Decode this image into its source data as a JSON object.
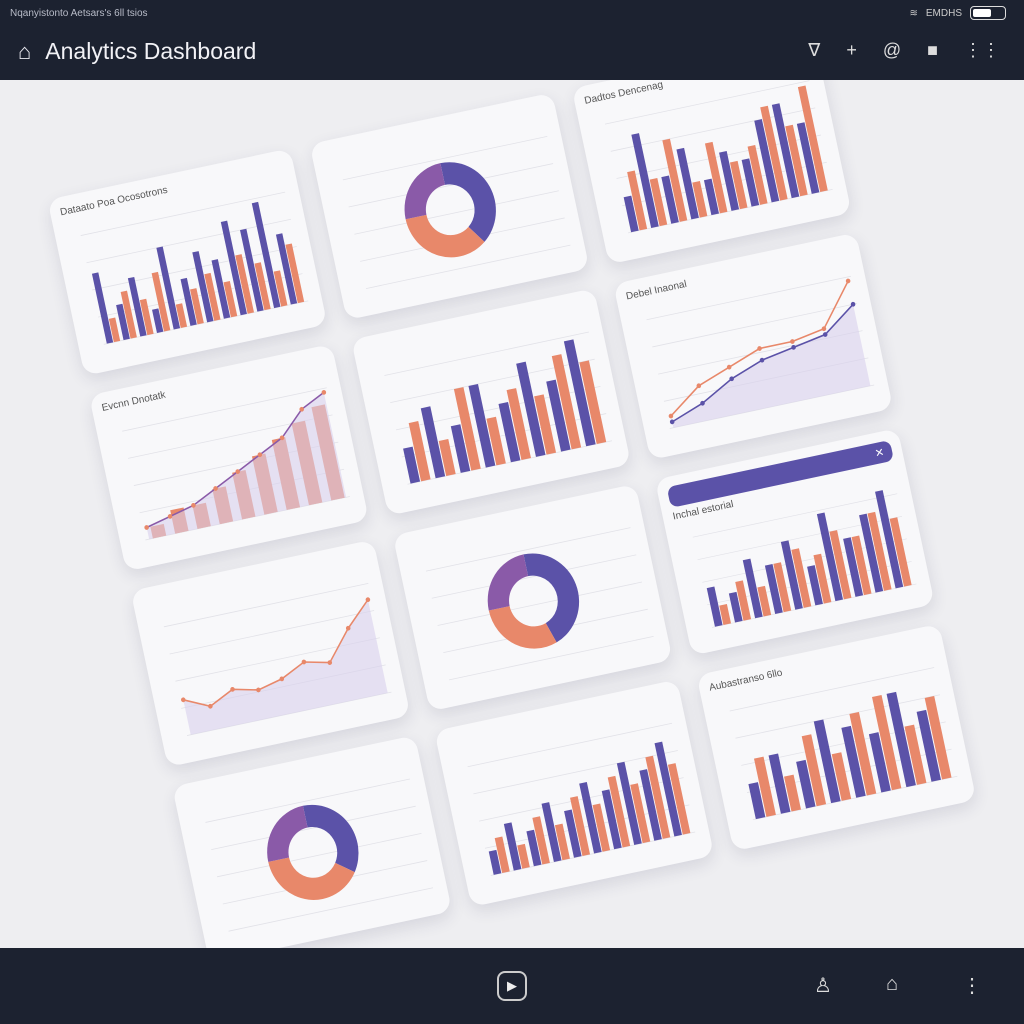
{
  "status_bar": {
    "text": "Nqanyistonto Aetsars's 6ll tsios",
    "network_label": "EMDHS"
  },
  "header": {
    "title": "Analytics Dashboard",
    "tools": [
      {
        "icon": "send-icon",
        "glyph": "∇"
      },
      {
        "icon": "plus-icon",
        "glyph": "+"
      },
      {
        "icon": "at-icon",
        "glyph": "@"
      },
      {
        "icon": "tag-icon",
        "glyph": "■"
      },
      {
        "icon": "more-icon",
        "glyph": "⋮⋮"
      }
    ]
  },
  "colors": {
    "purple": "#5b52a8",
    "orange": "#e8886a",
    "violet": "#8a5aa8",
    "header_bg": "#1c2230"
  },
  "chart_data": [
    {
      "type": "bar",
      "title": "Dataato Poa Ocosotrons",
      "series": [
        {
          "values": [
            6,
            3,
            5,
            2,
            7,
            4,
            6,
            5,
            8,
            7,
            9,
            6
          ]
        },
        {
          "values": [
            2,
            4,
            3,
            5,
            2,
            3,
            4,
            3,
            5,
            4,
            3,
            5
          ]
        }
      ]
    },
    {
      "type": "donut",
      "title": "",
      "values": [
        40,
        35,
        25
      ]
    },
    {
      "type": "bar",
      "title": "Dadtos Dencenag",
      "series": [
        {
          "values": [
            3,
            8,
            4,
            6,
            3,
            5,
            4,
            7,
            8,
            6
          ]
        },
        {
          "values": [
            5,
            4,
            7,
            3,
            6,
            4,
            5,
            8,
            6,
            9
          ]
        }
      ]
    },
    {
      "type": "line",
      "title": "Evcnn Dnotatk",
      "series": [
        {
          "values": [
            1,
            1.5,
            2,
            3,
            4,
            5,
            6,
            8,
            9
          ]
        }
      ],
      "bars": [
        1,
        2,
        2,
        3,
        4,
        5,
        6,
        7,
        8
      ]
    },
    {
      "type": "bar",
      "title": "",
      "series": [
        {
          "values": [
            3,
            6,
            4,
            7,
            5,
            8,
            6,
            9
          ]
        },
        {
          "values": [
            5,
            3,
            7,
            4,
            6,
            5,
            8,
            7
          ]
        }
      ]
    },
    {
      "type": "line",
      "title": "Debel Inaonal",
      "series": [
        {
          "values": [
            1,
            3,
            4,
            5,
            5,
            5.5,
            9
          ]
        },
        {
          "values": [
            0.5,
            1.5,
            3,
            4,
            4.5,
            5,
            7
          ]
        }
      ]
    },
    {
      "type": "line",
      "title": "",
      "series": [
        {
          "values": [
            3,
            2,
            3,
            2.5,
            3,
            4,
            3.5,
            6,
            8
          ]
        }
      ]
    },
    {
      "type": "donut",
      "title": "",
      "values": [
        45,
        30,
        25
      ]
    },
    {
      "type": "bar",
      "title": "Inchal estorial",
      "series": [
        {
          "values": [
            4,
            3,
            6,
            5,
            7,
            4,
            9,
            6,
            8,
            10
          ]
        },
        {
          "values": [
            2,
            4,
            3,
            5,
            6,
            5,
            7,
            6,
            8,
            7
          ]
        }
      ]
    },
    {
      "type": "donut",
      "title": "",
      "values": [
        35,
        40,
        25
      ]
    },
    {
      "type": "bar",
      "title": "",
      "series": [
        {
          "values": [
            2,
            4,
            3,
            5,
            4,
            6,
            5,
            7,
            6,
            8
          ]
        },
        {
          "values": [
            3,
            2,
            4,
            3,
            5,
            4,
            6,
            5,
            7,
            6
          ]
        }
      ]
    },
    {
      "type": "bar",
      "title": "Aubastranso 6llo",
      "series": [
        {
          "values": [
            3,
            5,
            4,
            7,
            6,
            5,
            8,
            6
          ]
        },
        {
          "values": [
            5,
            3,
            6,
            4,
            7,
            8,
            5,
            7
          ]
        }
      ]
    }
  ],
  "footer": {
    "play": "▶",
    "user": "user-icon",
    "home": "home-icon",
    "more": "more-icon"
  }
}
